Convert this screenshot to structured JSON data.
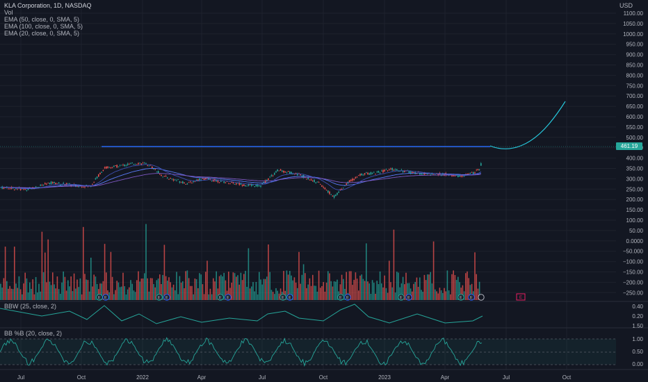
{
  "legend": {
    "title": "KLA Corporation, 1D, NASDAQ",
    "vol": "Vol",
    "ema1": "EMA (50, close, 0, SMA, 5)",
    "ema2": "EMA (100, close, 0, SMA, 5)",
    "ema3": "EMA (20, close, 0, SMA, 5)"
  },
  "currency": "USD",
  "last_price": "461.19",
  "price_axis": [
    "1100.00",
    "1050.00",
    "1000.00",
    "950.00",
    "900.00",
    "850.00",
    "800.00",
    "750.00",
    "700.00",
    "650.00",
    "600.00",
    "550.00",
    "500.00",
    "450.00",
    "400.00",
    "350.00",
    "300.00",
    "250.00",
    "200.00",
    "150.00",
    "100.00",
    "50.00",
    "0.0000",
    "−50.000",
    "−100.00",
    "−150.00",
    "−200.00",
    "−250.00"
  ],
  "bbw": {
    "label": "BBW (25, close, 2)",
    "axis": [
      "0.40",
      "0.20",
      "1.50"
    ]
  },
  "bbpct": {
    "label": "BB %B (20, close, 2)",
    "axis": [
      "1.00",
      "0.50",
      "0.00"
    ]
  },
  "time_axis": [
    "Jul",
    "Oct",
    "2022",
    "Apr",
    "Jul",
    "Oct",
    "2023",
    "Apr",
    "Jul",
    "Oct"
  ],
  "earnings_marker": "E",
  "colors": {
    "bg": "#131722",
    "up": "#26a69a",
    "down": "#ef5350",
    "resistance": "#2962ff",
    "curve": "#26c6da",
    "ema": "#5b7cfa",
    "bbw": "#26a69a"
  },
  "chart_data": {
    "type": "candlestick",
    "title": "KLA Corporation, 1D, NASDAQ",
    "price_series_approx": [
      {
        "x": "Jul",
        "y": 320
      },
      {
        "x": "Oct",
        "y": 330
      },
      {
        "x": "Nov",
        "y": 420
      },
      {
        "x": "2022",
        "y": 440
      },
      {
        "x": "Feb",
        "y": 390
      },
      {
        "x": "Apr",
        "y": 345
      },
      {
        "x": "Jun",
        "y": 340
      },
      {
        "x": "Jul",
        "y": 325
      },
      {
        "x": "Aug",
        "y": 400
      },
      {
        "x": "Oct",
        "y": 275
      },
      {
        "x": "Dec",
        "y": 385
      },
      {
        "x": "2023",
        "y": 390
      },
      {
        "x": "Feb",
        "y": 410
      },
      {
        "x": "Mar",
        "y": 390
      },
      {
        "x": "Apr",
        "y": 380
      },
      {
        "x": "May",
        "y": 400
      },
      {
        "x": "Jun",
        "y": 461.19
      }
    ],
    "resistance_level": 455,
    "ylim": [
      -250,
      1100
    ]
  }
}
